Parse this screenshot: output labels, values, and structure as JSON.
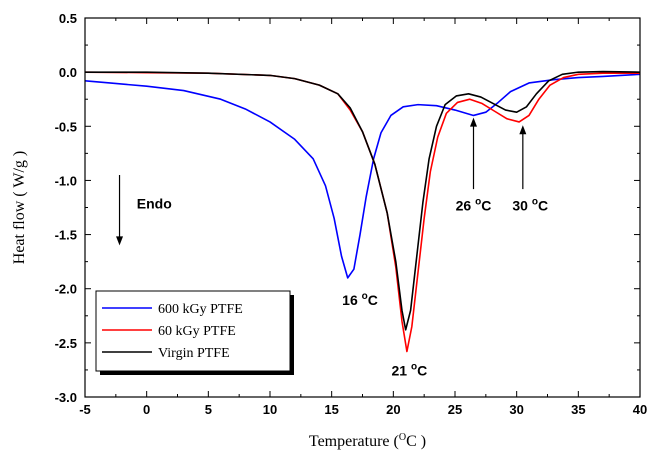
{
  "chart_data": {
    "type": "line",
    "xlabel_main": "Temperature (",
    "xlabel_sup": "O",
    "xlabel_end": "C )",
    "ylabel": "Heat flow ( W/g )",
    "xlim": [
      -5,
      40
    ],
    "ylim": [
      -3.0,
      0.5
    ],
    "x_ticks": [
      "-5",
      "0",
      "5",
      "10",
      "15",
      "20",
      "25",
      "30",
      "35",
      "40"
    ],
    "y_ticks": [
      "0.5",
      "0.0",
      "-0.5",
      "-1.0",
      "-1.5",
      "-2.0",
      "-2.5",
      "-3.0"
    ],
    "grid": false,
    "legend_position": "bottom-left",
    "series": [
      {
        "name": "600 kGy PTFE",
        "color": "#0000ff",
        "points": [
          [
            -5,
            -0.08
          ],
          [
            -3,
            -0.1
          ],
          [
            0,
            -0.13
          ],
          [
            3,
            -0.17
          ],
          [
            6,
            -0.25
          ],
          [
            8,
            -0.34
          ],
          [
            10,
            -0.46
          ],
          [
            12,
            -0.62
          ],
          [
            13.5,
            -0.8
          ],
          [
            14.5,
            -1.05
          ],
          [
            15.2,
            -1.35
          ],
          [
            15.8,
            -1.7
          ],
          [
            16.3,
            -1.9
          ],
          [
            16.8,
            -1.82
          ],
          [
            17.3,
            -1.5
          ],
          [
            17.8,
            -1.15
          ],
          [
            18.4,
            -0.8
          ],
          [
            19,
            -0.56
          ],
          [
            19.8,
            -0.4
          ],
          [
            20.8,
            -0.32
          ],
          [
            22,
            -0.3
          ],
          [
            23.5,
            -0.31
          ],
          [
            25,
            -0.35
          ],
          [
            26.5,
            -0.4
          ],
          [
            27.5,
            -0.37
          ],
          [
            28.5,
            -0.28
          ],
          [
            29.5,
            -0.18
          ],
          [
            31,
            -0.1
          ],
          [
            33,
            -0.07
          ],
          [
            35,
            -0.05
          ],
          [
            37,
            -0.04
          ],
          [
            40,
            -0.02
          ]
        ]
      },
      {
        "name": "60 kGy PTFE",
        "color": "#ff0000",
        "points": [
          [
            -5,
            0.0
          ],
          [
            0,
            -0.005
          ],
          [
            5,
            -0.01
          ],
          [
            10,
            -0.03
          ],
          [
            12,
            -0.06
          ],
          [
            14,
            -0.12
          ],
          [
            15.5,
            -0.2
          ],
          [
            16.5,
            -0.35
          ],
          [
            17.5,
            -0.55
          ],
          [
            18.5,
            -0.85
          ],
          [
            19.5,
            -1.3
          ],
          [
            20.2,
            -1.8
          ],
          [
            20.7,
            -2.3
          ],
          [
            21.1,
            -2.58
          ],
          [
            21.5,
            -2.35
          ],
          [
            22,
            -1.85
          ],
          [
            22.5,
            -1.35
          ],
          [
            23,
            -0.92
          ],
          [
            23.6,
            -0.6
          ],
          [
            24.3,
            -0.38
          ],
          [
            25.2,
            -0.28
          ],
          [
            26.2,
            -0.25
          ],
          [
            27.2,
            -0.29
          ],
          [
            28.2,
            -0.36
          ],
          [
            29.2,
            -0.43
          ],
          [
            30.2,
            -0.46
          ],
          [
            31,
            -0.4
          ],
          [
            31.8,
            -0.25
          ],
          [
            32.7,
            -0.12
          ],
          [
            33.8,
            -0.05
          ],
          [
            35,
            -0.02
          ],
          [
            37,
            -0.01
          ],
          [
            40,
            -0.01
          ]
        ]
      },
      {
        "name": "Virgin PTFE",
        "color": "#000000",
        "points": [
          [
            -5,
            0.0
          ],
          [
            0,
            0.0
          ],
          [
            5,
            -0.01
          ],
          [
            10,
            -0.03
          ],
          [
            12,
            -0.06
          ],
          [
            14,
            -0.12
          ],
          [
            15.5,
            -0.2
          ],
          [
            16.5,
            -0.33
          ],
          [
            17.5,
            -0.55
          ],
          [
            18.5,
            -0.85
          ],
          [
            19.5,
            -1.3
          ],
          [
            20.2,
            -1.75
          ],
          [
            20.7,
            -2.2
          ],
          [
            21.0,
            -2.38
          ],
          [
            21.4,
            -2.2
          ],
          [
            21.9,
            -1.7
          ],
          [
            22.4,
            -1.2
          ],
          [
            22.9,
            -0.8
          ],
          [
            23.5,
            -0.5
          ],
          [
            24.2,
            -0.3
          ],
          [
            25.1,
            -0.22
          ],
          [
            26.1,
            -0.2
          ],
          [
            27.1,
            -0.23
          ],
          [
            28.1,
            -0.29
          ],
          [
            29.1,
            -0.35
          ],
          [
            30,
            -0.37
          ],
          [
            30.8,
            -0.32
          ],
          [
            31.6,
            -0.2
          ],
          [
            32.6,
            -0.08
          ],
          [
            33.7,
            -0.02
          ],
          [
            35,
            0.0
          ],
          [
            37,
            0.005
          ],
          [
            40,
            0.0
          ]
        ]
      }
    ],
    "annotations": [
      {
        "label_main": "16 ",
        "label_sup": "o",
        "label_end": "C",
        "x": 17.3,
        "y": -2.15
      },
      {
        "label_main": "21 ",
        "label_sup": "o",
        "label_end": "C",
        "x": 21.3,
        "y": -2.8
      },
      {
        "label_main": "26 ",
        "label_sup": "o",
        "label_end": "C",
        "x": 26.5,
        "y": -1.28
      },
      {
        "label_main": "30 ",
        "label_sup": "o",
        "label_end": "C",
        "x": 31.1,
        "y": -1.28
      }
    ],
    "arrows": [
      {
        "x": 26.5,
        "y_from": -1.08,
        "y_to": -0.42
      },
      {
        "x": 30.5,
        "y_from": -1.08,
        "y_to": -0.49
      }
    ],
    "endo_label": "Endo",
    "endo_arrow": {
      "x": -2.2,
      "y_from": -0.95,
      "y_to": -1.6
    }
  }
}
